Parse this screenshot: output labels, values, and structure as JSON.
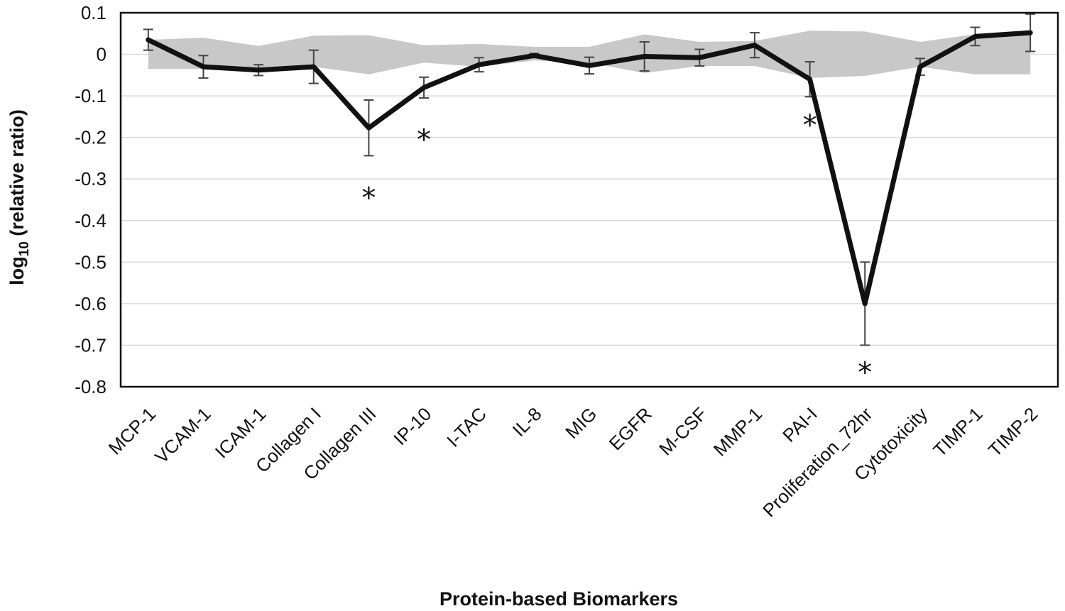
{
  "chart_data": {
    "type": "line",
    "title": "",
    "xlabel": "Protein-based Biomarkers",
    "ylabel_main": "log",
    "ylabel_sub": "10",
    "ylabel_rest": " (relative ratio)",
    "categories": [
      "MCP-1",
      "VCAM-1",
      "ICAM-1",
      "Collagen I",
      "Collagen III",
      "IP-10",
      "I-TAC",
      "IL-8",
      "MIG",
      "EGFR",
      "M-CSF",
      "MMP-1",
      "PAI-I",
      "Proliferation_72hr",
      "Cytotoxicity",
      "TIMP-1",
      "TIMP-2"
    ],
    "y_ticks": [
      "0.1",
      "0",
      "-0.1",
      "-0.2",
      "-0.3",
      "-0.4",
      "-0.5",
      "-0.6",
      "-0.7",
      "-0.8"
    ],
    "ylim": [
      -0.8,
      0.1
    ],
    "grid": true,
    "series": [
      {
        "values": [
          0.035,
          -0.03,
          -0.038,
          -0.03,
          -0.177,
          -0.08,
          -0.025,
          -0.003,
          -0.027,
          -0.005,
          -0.008,
          0.022,
          -0.06,
          -0.6,
          -0.03,
          0.043,
          0.052
        ],
        "errors": [
          0.025,
          0.027,
          0.013,
          0.04,
          0.067,
          0.025,
          0.017,
          0.005,
          0.02,
          0.035,
          0.02,
          0.03,
          0.042,
          0.1,
          0.02,
          0.022,
          0.045
        ],
        "color": "#111111"
      }
    ],
    "band": {
      "upper": [
        0.035,
        0.04,
        0.02,
        0.045,
        0.046,
        0.022,
        0.025,
        0.018,
        0.018,
        0.048,
        0.03,
        0.032,
        0.057,
        0.055,
        0.03,
        0.048,
        0.05
      ],
      "lower": [
        -0.035,
        -0.035,
        -0.035,
        -0.03,
        -0.048,
        -0.02,
        -0.03,
        -0.015,
        -0.02,
        -0.045,
        -0.028,
        -0.028,
        -0.057,
        -0.052,
        -0.03,
        -0.048,
        -0.048
      ],
      "color": "#c8c8c8"
    },
    "significance_marker": "*",
    "annotations": [
      {
        "category": "Collagen III",
        "label": "*",
        "value": -0.335
      },
      {
        "category": "IP-10",
        "label": "*",
        "value": -0.195
      },
      {
        "category": "PAI-I",
        "label": "*",
        "value": -0.16
      },
      {
        "category": "Proliferation_72hr",
        "label": "*",
        "value": -0.755
      }
    ],
    "colors": {
      "line": "#111111",
      "band": "#c8c8c8",
      "grid": "#d9d9d9",
      "frame": "#111111"
    }
  }
}
